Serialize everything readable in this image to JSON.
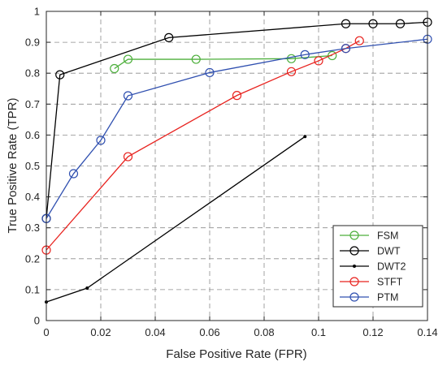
{
  "chart_data": {
    "type": "line",
    "title": "",
    "xlabel": "False Positive Rate (FPR)",
    "ylabel": "True Positive Rate (TPR)",
    "xlim": [
      0,
      0.14
    ],
    "ylim": [
      0,
      1
    ],
    "x_ticks": [
      0,
      0.02,
      0.04,
      0.06,
      0.08,
      0.1,
      0.12,
      0.14
    ],
    "x_tick_labels": [
      "0",
      "0.02",
      "0.04",
      "0.06",
      "0.08",
      "0.1",
      "0.12",
      "0.14"
    ],
    "y_ticks": [
      0,
      0.1,
      0.2,
      0.3,
      0.4,
      0.5,
      0.6,
      0.7,
      0.8,
      0.9,
      1
    ],
    "y_tick_labels": [
      "0",
      "0.1",
      "0.2",
      "0.3",
      "0.4",
      "0.5",
      "0.6",
      "0.7",
      "0.8",
      "0.9",
      "1"
    ],
    "grid": true,
    "legend_position": "bottom-right",
    "series": [
      {
        "name": "FSM",
        "color": "#4daf3c",
        "marker": "circle",
        "x": [
          0.025,
          0.03,
          0.055,
          0.09,
          0.105
        ],
        "y": [
          0.815,
          0.845,
          0.845,
          0.847,
          0.857
        ]
      },
      {
        "name": "DWT",
        "color": "#000000",
        "marker": "circle",
        "x": [
          0,
          0.005,
          0.045,
          0.11,
          0.12,
          0.13,
          0.14
        ],
        "y": [
          0.33,
          0.795,
          0.915,
          0.96,
          0.96,
          0.96,
          0.965
        ]
      },
      {
        "name": "DWT2",
        "color": "#000000",
        "marker": "dot",
        "x": [
          0,
          0.015,
          0.095
        ],
        "y": [
          0.06,
          0.105,
          0.595
        ]
      },
      {
        "name": "STFT",
        "color": "#e8231f",
        "marker": "circle",
        "x": [
          0,
          0.03,
          0.07,
          0.09,
          0.1,
          0.11,
          0.115
        ],
        "y": [
          0.228,
          0.53,
          0.728,
          0.805,
          0.84,
          0.88,
          0.905
        ]
      },
      {
        "name": "PTM",
        "color": "#3050b0",
        "marker": "circle",
        "x": [
          0,
          0.01,
          0.02,
          0.03,
          0.06,
          0.095,
          0.11,
          0.14
        ],
        "y": [
          0.33,
          0.475,
          0.583,
          0.727,
          0.802,
          0.86,
          0.88,
          0.91
        ]
      }
    ]
  }
}
